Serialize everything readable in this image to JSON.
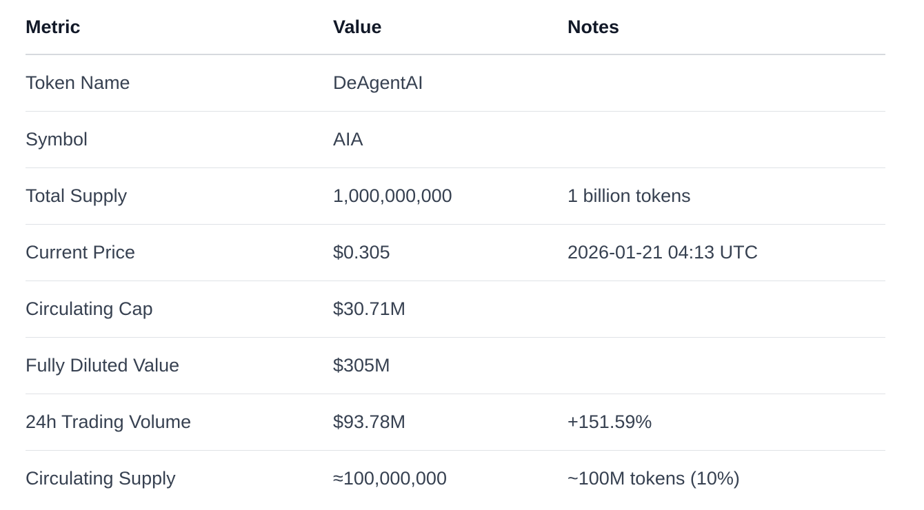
{
  "table": {
    "headers": [
      "Metric",
      "Value",
      "Notes"
    ],
    "rows": [
      {
        "metric": "Token Name",
        "value": "DeAgentAI",
        "notes": ""
      },
      {
        "metric": "Symbol",
        "value": "AIA",
        "notes": ""
      },
      {
        "metric": "Total Supply",
        "value": "1,000,000,000",
        "notes": "1 billion tokens"
      },
      {
        "metric": "Current Price",
        "value": "$0.305",
        "notes": "2026-01-21 04:13 UTC"
      },
      {
        "metric": "Circulating Cap",
        "value": "$30.71M",
        "notes": ""
      },
      {
        "metric": "Fully Diluted Value",
        "value": "$305M",
        "notes": ""
      },
      {
        "metric": "24h Trading Volume",
        "value": "$93.78M",
        "notes": "+151.59%"
      },
      {
        "metric": "Circulating Supply",
        "value": "≈100,000,000",
        "notes": "~100M tokens (10%)"
      }
    ]
  }
}
